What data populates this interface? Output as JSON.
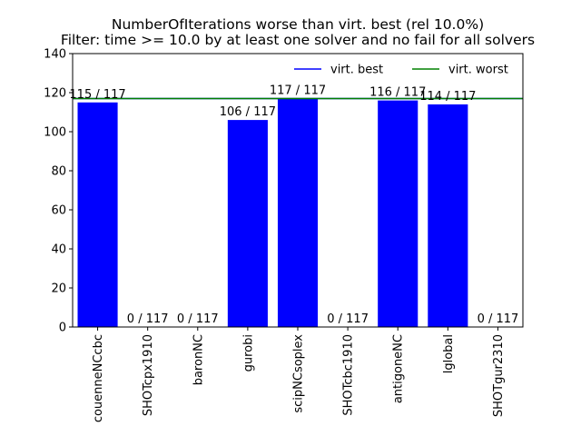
{
  "chart_data": {
    "type": "bar",
    "title": "NumberOfIterations worse than virt. best (rel 10.0%)",
    "subtitle": "Filter: time >= 10.0 by at least one solver and no fail for all solvers",
    "xlabel": "",
    "ylabel": "",
    "categories": [
      "couenneNCcbc",
      "SHOTcpx1910",
      "baronNC",
      "gurobi",
      "scipNCsoplex",
      "SHOTcbc1910",
      "antigoneNC",
      "lglobal",
      "SHOTgur2310"
    ],
    "values": [
      115,
      0,
      0,
      106,
      117,
      0,
      116,
      114,
      0
    ],
    "bar_labels": [
      "115 / 117",
      "0 / 117",
      "0 / 117",
      "106 / 117",
      "117 / 117",
      "0 / 117",
      "116 / 117",
      "114 / 117",
      "0 / 117"
    ],
    "bar_color": "#0000ff",
    "ylim": [
      0,
      140
    ],
    "yticks": [
      0,
      20,
      40,
      60,
      80,
      100,
      120,
      140
    ],
    "reference_lines": [
      {
        "name": "virt. best",
        "value": 117,
        "color": "#0000ff"
      },
      {
        "name": "virt. worst",
        "value": 117,
        "color": "#008000"
      }
    ],
    "legend": {
      "position": "top-right",
      "entries": [
        "virt. best",
        "virt. worst"
      ]
    },
    "grid": false
  }
}
